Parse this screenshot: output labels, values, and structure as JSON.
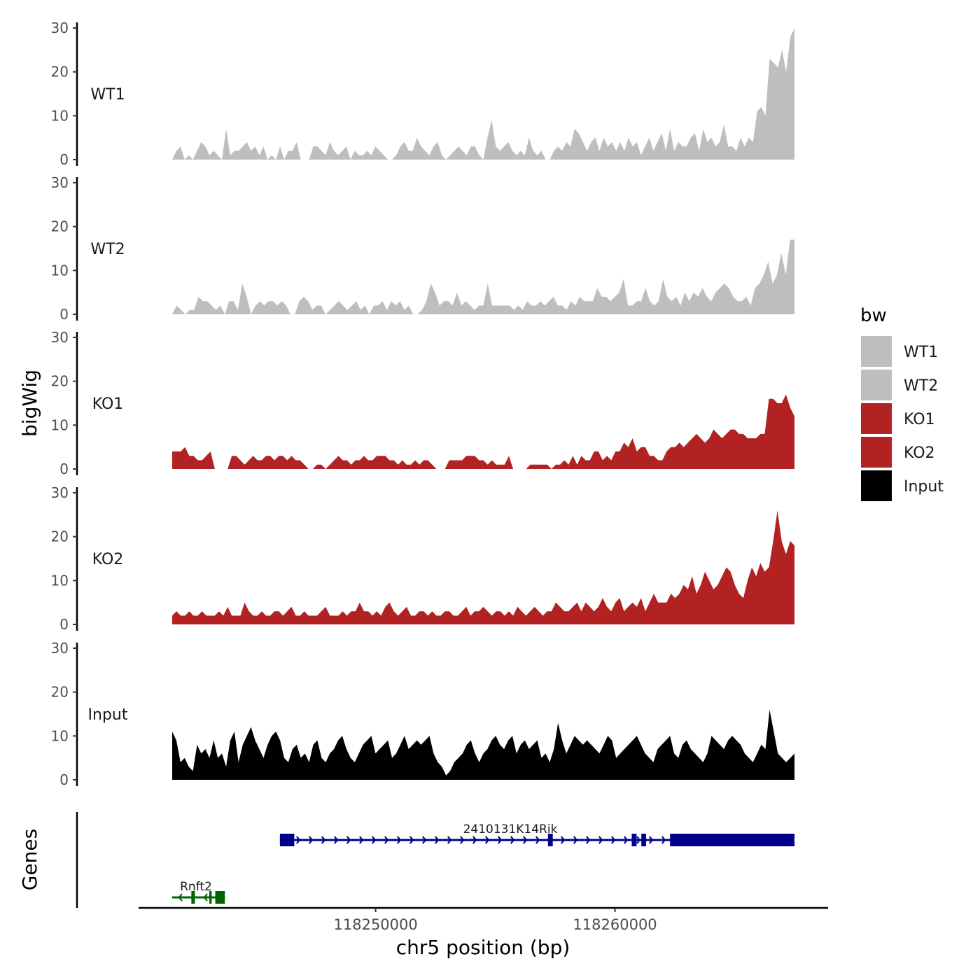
{
  "chart_data": {
    "type": "area",
    "x_start": 118241500,
    "x_end": 118267500,
    "xlabel": "chr5 position (bp)",
    "x_ticks": [
      118250000,
      118260000
    ],
    "x_tick_labels": [
      "118250000",
      "118260000"
    ],
    "ylabel": "bigWig",
    "ylim": [
      0,
      30
    ],
    "y_ticks": [
      0,
      10,
      20,
      30
    ],
    "y_tick_labels": [
      "0",
      "10",
      "20",
      "30"
    ],
    "legend": {
      "title": "bw",
      "entries": [
        {
          "label": "WT1",
          "color": "#bebebe"
        },
        {
          "label": "WT2",
          "color": "#bebebe"
        },
        {
          "label": "KO1",
          "color": "#b22222"
        },
        {
          "label": "KO2",
          "color": "#b22222"
        },
        {
          "label": "Input",
          "color": "#000000"
        }
      ]
    },
    "series": [
      {
        "name": "WT1",
        "color": "#bebebe",
        "values": [
          0,
          2,
          3,
          0,
          1,
          0,
          2,
          4,
          3,
          1,
          2,
          1,
          0,
          7,
          1,
          2,
          2,
          3,
          4,
          2,
          3,
          1,
          3,
          0,
          1,
          0,
          3,
          0,
          2,
          2,
          4,
          0,
          0,
          0,
          3,
          3,
          2,
          1,
          4,
          2,
          1,
          2,
          3,
          0,
          2,
          1,
          1,
          2,
          1,
          3,
          2,
          1,
          0,
          0,
          1,
          3,
          4,
          2,
          2,
          5,
          3,
          2,
          1,
          3,
          4,
          1,
          0,
          1,
          2,
          3,
          2,
          1,
          3,
          3,
          1,
          0,
          5,
          9,
          3,
          2,
          3,
          4,
          2,
          1,
          2,
          1,
          5,
          2,
          1,
          2,
          0,
          0,
          2,
          3,
          2,
          4,
          3,
          7,
          6,
          4,
          2,
          4,
          5,
          2,
          5,
          3,
          4,
          2,
          4,
          2,
          5,
          3,
          4,
          1,
          3,
          5,
          2,
          4,
          6,
          2,
          7,
          2,
          4,
          3,
          3,
          5,
          6,
          2,
          7,
          4,
          5,
          3,
          4,
          8,
          3,
          3,
          2,
          5,
          3,
          5,
          4,
          11,
          12,
          10,
          23,
          22,
          21,
          25,
          20,
          28,
          30
        ]
      },
      {
        "name": "WT2",
        "color": "#bebebe",
        "values": [
          0,
          2,
          1,
          0,
          1,
          1,
          4,
          3,
          3,
          2,
          1,
          2,
          0,
          3,
          3,
          1,
          7,
          4,
          0,
          2,
          3,
          2,
          3,
          3,
          2,
          3,
          2,
          0,
          0,
          3,
          4,
          3,
          1,
          2,
          2,
          0,
          1,
          2,
          3,
          2,
          1,
          2,
          3,
          1,
          2,
          0,
          2,
          2,
          3,
          1,
          3,
          2,
          3,
          1,
          2,
          0,
          0,
          1,
          3,
          7,
          5,
          2,
          3,
          3,
          2,
          5,
          2,
          3,
          2,
          1,
          2,
          2,
          7,
          2,
          2,
          2,
          2,
          2,
          1,
          2,
          1,
          3,
          2,
          2,
          3,
          2,
          3,
          4,
          2,
          2,
          1,
          3,
          2,
          4,
          3,
          3,
          3,
          6,
          4,
          4,
          3,
          4,
          5,
          8,
          2,
          2,
          3,
          3,
          6,
          3,
          2,
          3,
          8,
          4,
          3,
          4,
          2,
          5,
          3,
          5,
          4,
          6,
          4,
          3,
          5,
          6,
          7,
          6,
          4,
          3,
          3,
          4,
          2,
          6,
          7,
          9,
          12,
          7,
          9,
          14,
          9,
          17,
          17
        ]
      },
      {
        "name": "KO1",
        "color": "#b22222",
        "values": [
          4,
          4,
          4,
          5,
          3,
          3,
          2,
          2,
          3,
          4,
          0,
          0,
          0,
          0,
          3,
          3,
          2,
          1,
          2,
          3,
          2,
          2,
          3,
          3,
          2,
          3,
          3,
          2,
          3,
          2,
          2,
          1,
          0,
          0,
          1,
          1,
          0,
          1,
          2,
          3,
          2,
          2,
          1,
          2,
          2,
          3,
          2,
          2,
          3,
          3,
          3,
          2,
          2,
          1,
          2,
          1,
          1,
          2,
          1,
          2,
          2,
          1,
          0,
          0,
          0,
          2,
          2,
          2,
          2,
          3,
          3,
          3,
          2,
          2,
          1,
          2,
          1,
          1,
          1,
          3,
          0,
          0,
          0,
          0,
          1,
          1,
          1,
          1,
          1,
          0,
          1,
          1,
          2,
          1,
          3,
          1,
          3,
          2,
          2,
          4,
          4,
          2,
          3,
          2,
          4,
          4,
          6,
          5,
          7,
          4,
          5,
          5,
          3,
          3,
          2,
          2,
          4,
          5,
          5,
          6,
          5,
          6,
          7,
          8,
          7,
          6,
          7,
          9,
          8,
          7,
          8,
          9,
          9,
          8,
          8,
          7,
          7,
          7,
          8,
          8,
          16,
          16,
          15,
          15,
          17,
          14,
          12
        ]
      },
      {
        "name": "KO2",
        "color": "#b22222",
        "values": [
          2,
          3,
          2,
          2,
          3,
          2,
          2,
          3,
          2,
          2,
          2,
          3,
          2,
          4,
          2,
          2,
          2,
          5,
          3,
          2,
          2,
          3,
          2,
          2,
          3,
          3,
          2,
          3,
          4,
          2,
          2,
          3,
          2,
          2,
          2,
          3,
          4,
          2,
          2,
          2,
          3,
          2,
          3,
          3,
          5,
          3,
          3,
          2,
          3,
          2,
          4,
          5,
          3,
          2,
          3,
          4,
          2,
          2,
          3,
          3,
          2,
          3,
          2,
          2,
          3,
          3,
          2,
          2,
          3,
          4,
          2,
          3,
          3,
          4,
          3,
          2,
          3,
          3,
          2,
          3,
          2,
          4,
          3,
          2,
          3,
          4,
          3,
          2,
          3,
          3,
          5,
          4,
          3,
          3,
          4,
          5,
          3,
          5,
          4,
          3,
          4,
          6,
          4,
          3,
          5,
          6,
          3,
          4,
          5,
          4,
          6,
          3,
          5,
          7,
          5,
          5,
          5,
          7,
          6,
          7,
          9,
          8,
          11,
          7,
          9,
          12,
          10,
          8,
          9,
          11,
          13,
          12,
          9,
          7,
          6,
          10,
          13,
          11,
          14,
          12,
          13,
          19,
          26,
          19,
          16,
          19,
          18
        ]
      },
      {
        "name": "Input",
        "color": "#000000",
        "values": [
          11,
          9,
          4,
          5,
          3,
          2,
          8,
          6,
          7,
          5,
          9,
          5,
          6,
          3,
          9,
          11,
          4,
          8,
          10,
          12,
          9,
          7,
          5,
          8,
          10,
          11,
          9,
          5,
          4,
          7,
          8,
          5,
          6,
          4,
          8,
          9,
          5,
          4,
          6,
          7,
          9,
          10,
          7,
          5,
          4,
          6,
          8,
          9,
          10,
          6,
          7,
          8,
          9,
          5,
          6,
          8,
          10,
          7,
          8,
          9,
          8,
          9,
          10,
          6,
          4,
          3,
          1,
          2,
          4,
          5,
          6,
          8,
          9,
          6,
          4,
          6,
          7,
          9,
          10,
          8,
          7,
          9,
          10,
          6,
          8,
          9,
          7,
          8,
          9,
          5,
          6,
          4,
          7,
          13,
          9,
          6,
          8,
          10,
          9,
          8,
          9,
          8,
          7,
          6,
          8,
          10,
          9,
          5,
          6,
          7,
          8,
          9,
          10,
          8,
          6,
          5,
          4,
          7,
          8,
          9,
          10,
          6,
          5,
          8,
          9,
          7,
          6,
          5,
          4,
          6,
          10,
          9,
          8,
          7,
          9,
          10,
          9,
          8,
          6,
          5,
          4,
          6,
          8,
          7,
          16,
          11,
          6,
          5,
          4,
          5,
          6
        ]
      }
    ],
    "genes": {
      "title": "Genes",
      "items": [
        {
          "name": "2410131K14Rik",
          "strand": "+",
          "color": "#00008b",
          "start": 118246000,
          "end": 118267500,
          "exons": [
            [
              118246000,
              118246600
            ],
            [
              118257200,
              118257400
            ],
            [
              118260700,
              118260900
            ],
            [
              118261100,
              118261300
            ],
            [
              118262300,
              118267500
            ]
          ]
        },
        {
          "name": "Rnft2",
          "strand": "-",
          "color": "#006400",
          "start": 118241500,
          "end": 118243700,
          "exons": [
            [
              118242300,
              118242450
            ],
            [
              118243050,
              118243150
            ],
            [
              118243300,
              118243700
            ]
          ]
        }
      ]
    }
  }
}
